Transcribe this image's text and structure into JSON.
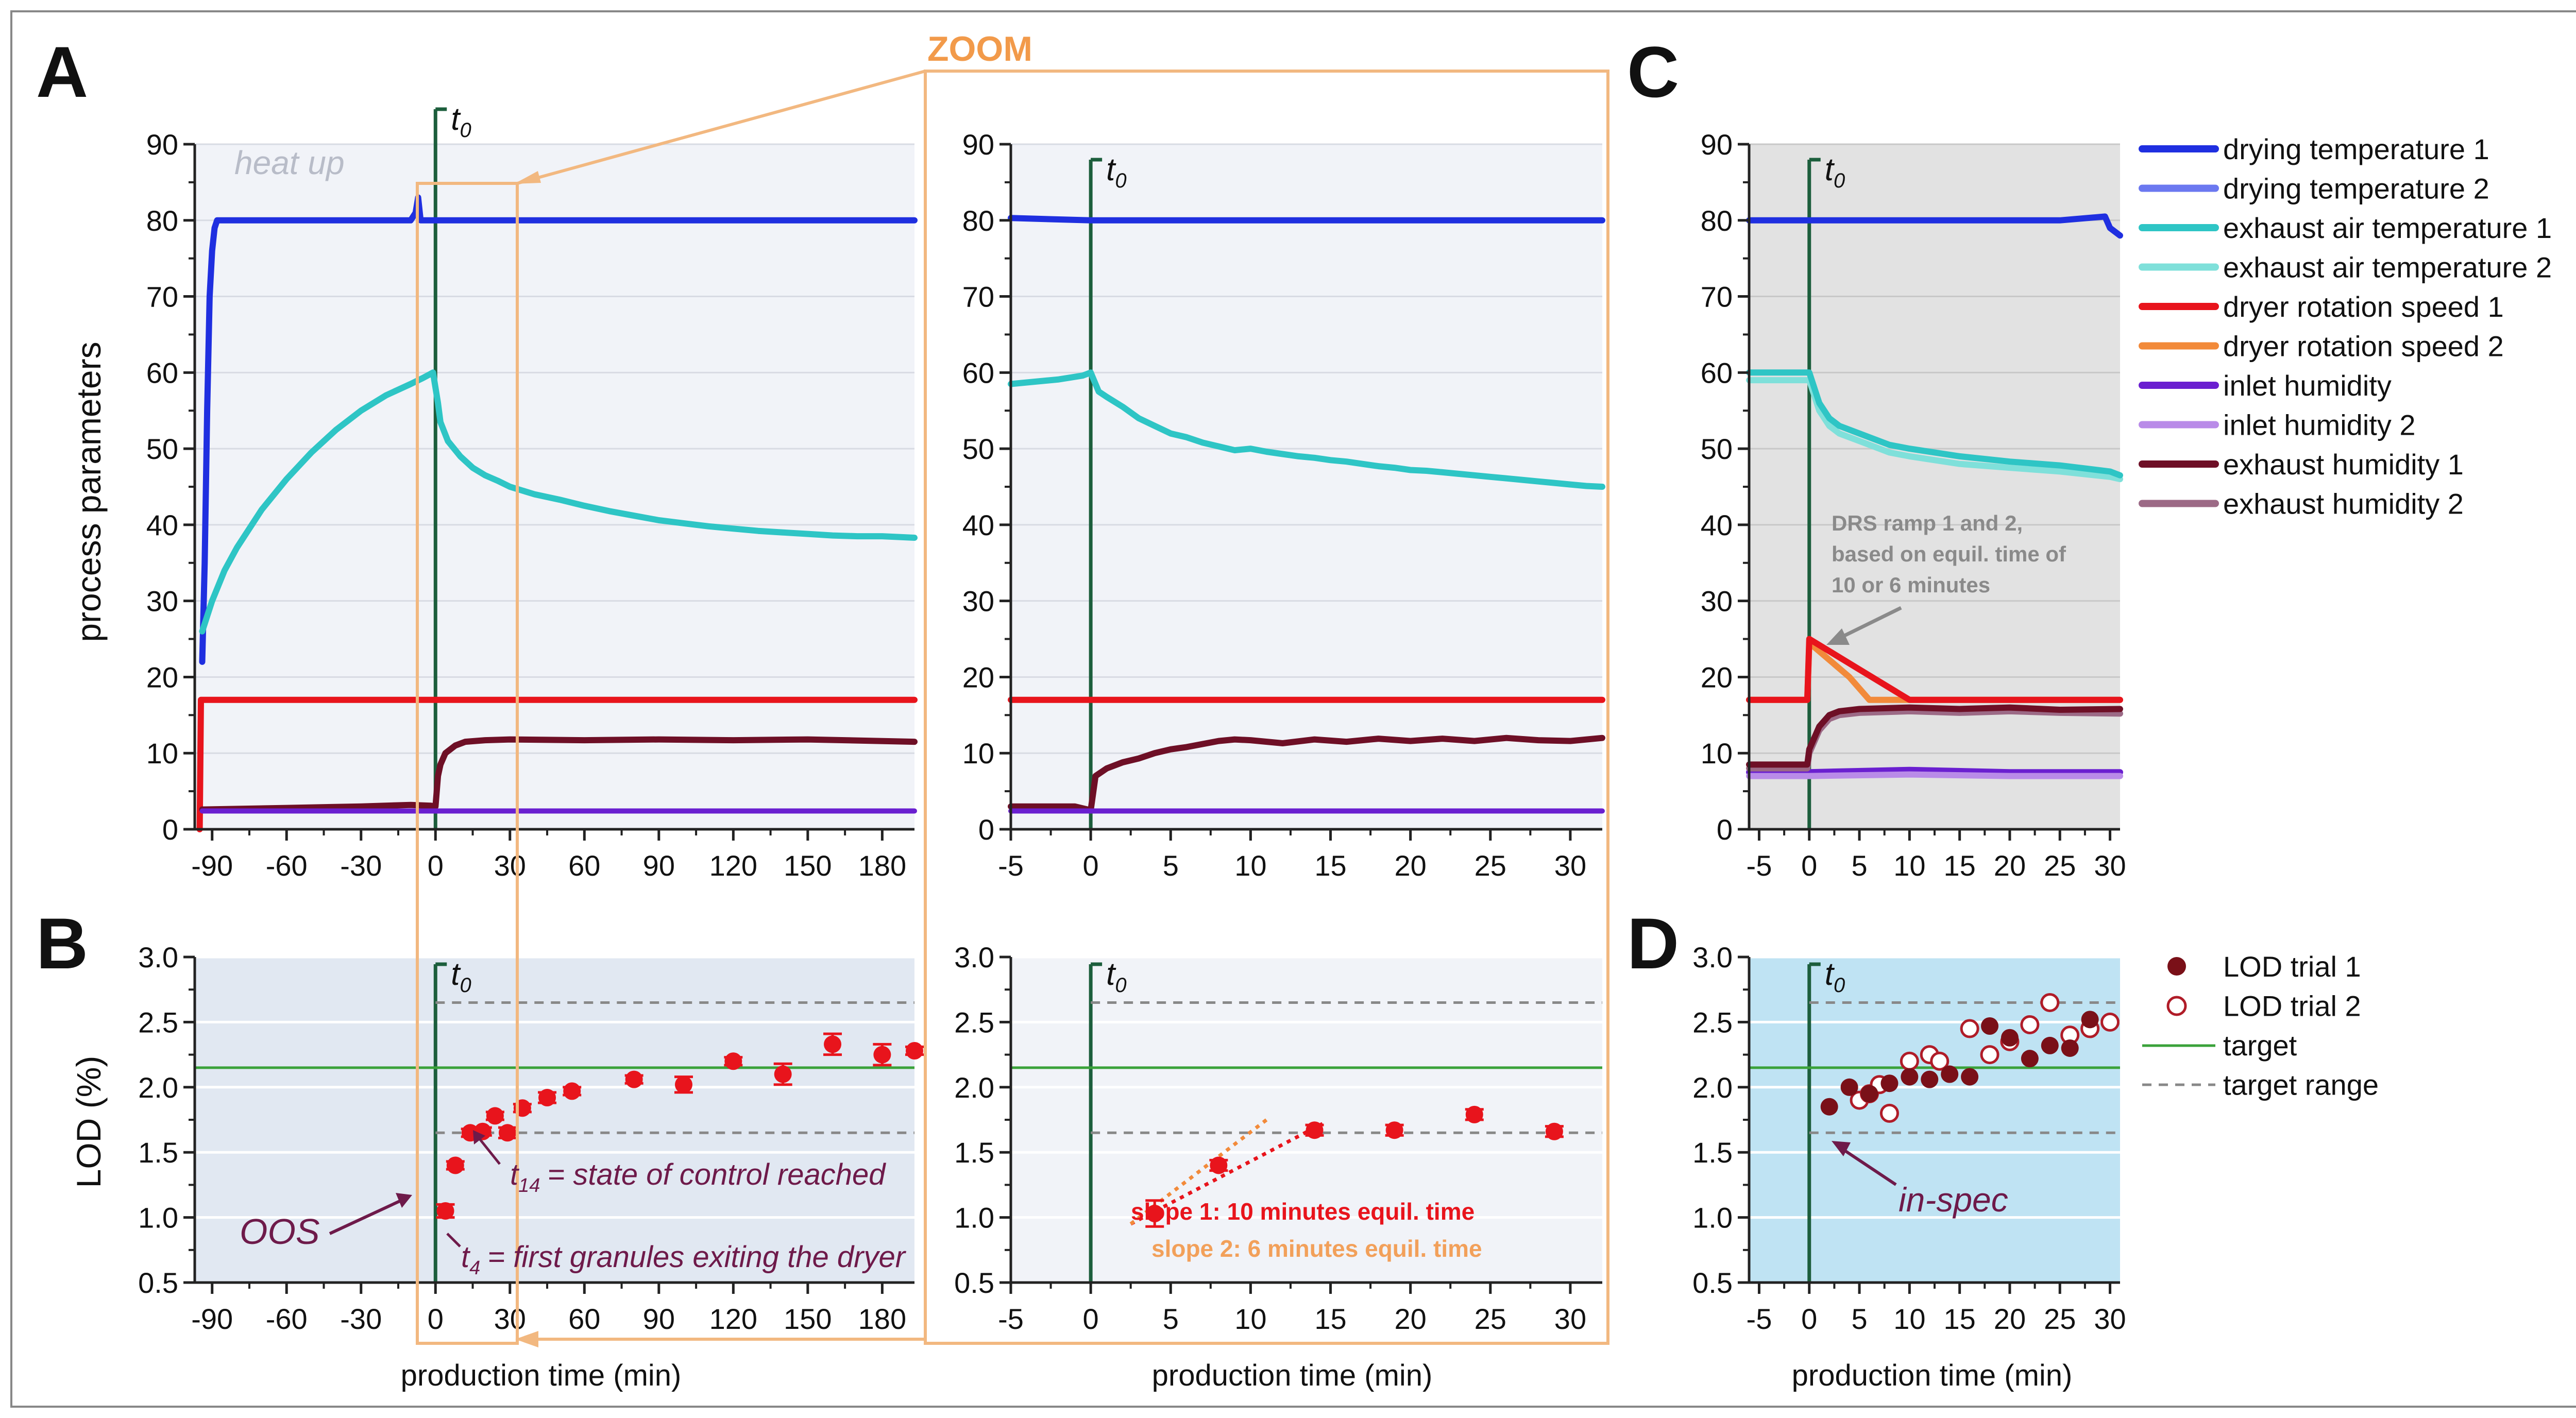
{
  "figure": {
    "panel_letters": {
      "A": "A",
      "B": "B",
      "C": "C",
      "D": "D"
    },
    "zoom_label": "ZOOM",
    "colors": {
      "drying_temp_1": "#1f2fe0",
      "drying_temp_2": "#6b78f0",
      "exhaust_temp_1": "#2ec5c5",
      "exhaust_temp_2": "#7fe0da",
      "rotation_1": "#e8141c",
      "rotation_2": "#f28a3a",
      "inlet_hum_1": "#6a1fd0",
      "inlet_hum_2": "#b98be8",
      "exhaust_hum_1": "#6e0f26",
      "exhaust_hum_2": "#9c6a86",
      "lod": "#e8141c",
      "lod_trial1": "#7a1018",
      "target": "#3aa23a",
      "target_range": "#888888",
      "t0": "#1c5e3c",
      "zoom": "#f2b880",
      "annot": "#6e1a4a",
      "bgA": "#f1f3f8",
      "bgB": "#e1e8f2",
      "bgC": "#e2e2e2",
      "bgD": "#bfe3f3"
    }
  },
  "chart_data": [
    {
      "id": "A",
      "type": "line",
      "ylabel": "process parameters",
      "xlabel": "",
      "xlim": [
        -97,
        193
      ],
      "ylim": [
        0,
        90
      ],
      "xticks": [
        "-90",
        "-60",
        "-30",
        "0",
        "30",
        "60",
        "90",
        "120",
        "150",
        "180"
      ],
      "yticks": [
        "0",
        "10",
        "20",
        "30",
        "40",
        "50",
        "60",
        "70",
        "80",
        "90"
      ],
      "t0_label": "t0",
      "annotations": {
        "heat_up": "heat up"
      },
      "series": [
        {
          "name": "drying temperature 1",
          "x": [
            -94,
            -93,
            -92,
            -91,
            -90,
            -89,
            -88,
            -86,
            -84,
            -80,
            -60,
            -30,
            -10,
            -8,
            -7,
            -6,
            -4,
            0,
            30,
            60,
            90,
            120,
            150,
            193
          ],
          "y": [
            22,
            35,
            55,
            70,
            76,
            79,
            80,
            80,
            80,
            80,
            80,
            80,
            80,
            81,
            83,
            80,
            80,
            80,
            80,
            80,
            80,
            80,
            80,
            80
          ]
        },
        {
          "name": "exhaust air temperature 1",
          "x": [
            -94,
            -90,
            -85,
            -80,
            -70,
            -60,
            -50,
            -40,
            -30,
            -20,
            -10,
            -5,
            -1,
            0,
            1,
            2,
            5,
            10,
            15,
            20,
            25,
            30,
            40,
            50,
            60,
            70,
            80,
            90,
            100,
            110,
            120,
            130,
            140,
            150,
            160,
            170,
            180,
            193
          ],
          "y": [
            26,
            30,
            34,
            37,
            42,
            46,
            49.5,
            52.5,
            55,
            57,
            58.5,
            59.3,
            60,
            58,
            56,
            53.5,
            51,
            49,
            47.5,
            46.5,
            45.8,
            45,
            44,
            43.3,
            42.5,
            41.8,
            41.2,
            40.6,
            40.2,
            39.8,
            39.5,
            39.2,
            39,
            38.8,
            38.6,
            38.5,
            38.5,
            38.3
          ]
        },
        {
          "name": "dryer rotation speed 1",
          "x": [
            -95,
            -94.5,
            -94,
            -90,
            193
          ],
          "y": [
            0,
            17,
            17,
            17,
            17
          ]
        },
        {
          "name": "exhaust humidity 1",
          "x": [
            -94,
            -60,
            -30,
            -10,
            -2,
            0,
            1,
            2,
            4,
            8,
            12,
            20,
            30,
            60,
            90,
            120,
            150,
            193
          ],
          "y": [
            2.6,
            2.8,
            3,
            3.2,
            3.1,
            3,
            7,
            8.5,
            10,
            11,
            11.5,
            11.7,
            11.8,
            11.7,
            11.8,
            11.7,
            11.8,
            11.5
          ]
        },
        {
          "name": "inlet humidity",
          "x": [
            -94,
            193
          ],
          "y": [
            2.4,
            2.4
          ]
        }
      ]
    },
    {
      "id": "A-zoom",
      "type": "line",
      "xlim": [
        -5,
        32
      ],
      "ylim": [
        0,
        90
      ],
      "xticks": [
        "-5",
        "0",
        "5",
        "10",
        "15",
        "20",
        "25",
        "30"
      ],
      "yticks": [
        "0",
        "10",
        "20",
        "30",
        "40",
        "50",
        "60",
        "70",
        "80",
        "90"
      ],
      "t0_label": "t0",
      "series": [
        {
          "name": "drying temperature 1",
          "x": [
            -5,
            0,
            32
          ],
          "y": [
            80.3,
            80,
            80
          ]
        },
        {
          "name": "exhaust air temperature 1",
          "x": [
            -5,
            -2,
            -0.5,
            0,
            0.5,
            1,
            2,
            3,
            4,
            5,
            6,
            7,
            8,
            9,
            10,
            11,
            12,
            13,
            14,
            15,
            16,
            17,
            18,
            19,
            20,
            21,
            22,
            23,
            24,
            25,
            26,
            27,
            28,
            29,
            30,
            31,
            32
          ],
          "y": [
            58.5,
            59.1,
            59.6,
            60,
            57.5,
            56.8,
            55.5,
            54,
            53,
            52,
            51.5,
            50.8,
            50.3,
            49.8,
            50,
            49.6,
            49.3,
            49,
            48.8,
            48.5,
            48.3,
            48,
            47.7,
            47.5,
            47.2,
            47.1,
            46.9,
            46.7,
            46.5,
            46.3,
            46.1,
            45.9,
            45.7,
            45.5,
            45.3,
            45.1,
            45
          ]
        },
        {
          "name": "dryer rotation speed 1",
          "x": [
            -5,
            32
          ],
          "y": [
            17,
            17
          ]
        },
        {
          "name": "exhaust humidity 1",
          "x": [
            -5,
            -1,
            0,
            0.3,
            1,
            2,
            3,
            4,
            5,
            6,
            7,
            8,
            9,
            10,
            12,
            14,
            16,
            18,
            20,
            22,
            24,
            26,
            28,
            30,
            32
          ],
          "y": [
            3,
            3,
            2.5,
            7,
            8,
            8.8,
            9.3,
            10,
            10.5,
            10.8,
            11.2,
            11.6,
            11.8,
            11.7,
            11.3,
            11.8,
            11.5,
            11.9,
            11.6,
            11.9,
            11.6,
            12,
            11.7,
            11.6,
            12
          ]
        },
        {
          "name": "inlet humidity",
          "x": [
            -5,
            32
          ],
          "y": [
            2.4,
            2.4
          ]
        }
      ]
    },
    {
      "id": "C",
      "type": "line",
      "xlim": [
        -6,
        31
      ],
      "ylim": [
        0,
        90
      ],
      "xticks": [
        "-5",
        "0",
        "5",
        "10",
        "15",
        "20",
        "25",
        "30"
      ],
      "yticks": [
        "0",
        "10",
        "20",
        "30",
        "40",
        "50",
        "60",
        "70",
        "80",
        "90"
      ],
      "t0_label": "t0",
      "annotation": {
        "line1": "DRS ramp 1 and 2,",
        "line2": "based on equil. time of",
        "line3": "10 or 6 minutes"
      },
      "legend": [
        "drying temperature 1",
        "drying temperature  2",
        "exhaust air temperature 1",
        "exhaust air temperature  2",
        "dryer rotation speed 1",
        "dryer rotation speed 2",
        "inlet humidity",
        "inlet humidity  2",
        "exhaust humidity 1",
        "exhaust humidity  2"
      ],
      "series": [
        {
          "name": "drying temperature 1",
          "x": [
            -6,
            0,
            5,
            10,
            15,
            20,
            25,
            29.5,
            30,
            31
          ],
          "y": [
            80,
            80,
            80,
            80,
            80,
            80,
            80,
            80.5,
            79,
            78
          ]
        },
        {
          "name": "exhaust air temperature 2",
          "x": [
            -6,
            -2,
            0,
            1,
            2,
            3,
            5,
            8,
            10,
            15,
            20,
            25,
            30,
            31
          ],
          "y": [
            59,
            59,
            59,
            55,
            53,
            52,
            51,
            49.5,
            49,
            48,
            47.5,
            47,
            46.3,
            46
          ]
        },
        {
          "name": "exhaust air temperature 1",
          "x": [
            -6,
            -2,
            0,
            1,
            2,
            3,
            5,
            8,
            10,
            15,
            20,
            25,
            30,
            31
          ],
          "y": [
            60,
            60,
            60,
            56,
            54,
            53,
            52,
            50.5,
            50,
            49,
            48.3,
            47.8,
            47,
            46.5
          ]
        },
        {
          "name": "dryer rotation speed 2",
          "x": [
            -6,
            -0.2,
            0,
            4,
            6,
            31
          ],
          "y": [
            17,
            17,
            24.5,
            20,
            17,
            17
          ]
        },
        {
          "name": "dryer rotation speed 1",
          "x": [
            -6,
            -0.2,
            0,
            5,
            10,
            31
          ],
          "y": [
            17,
            17,
            25,
            21,
            17,
            17
          ]
        },
        {
          "name": "inlet humidity",
          "x": [
            -6,
            0,
            10,
            20,
            31
          ],
          "y": [
            7.5,
            7.5,
            7.8,
            7.5,
            7.5
          ]
        },
        {
          "name": "inlet humidity 2",
          "x": [
            -6,
            0,
            10,
            20,
            31
          ],
          "y": [
            7,
            7,
            7.2,
            7,
            7
          ]
        },
        {
          "name": "exhaust humidity 2",
          "x": [
            -6,
            -0.2,
            0,
            1,
            2,
            3,
            5,
            10,
            15,
            20,
            25,
            31
          ],
          "y": [
            8,
            8,
            10,
            13,
            14.5,
            15,
            15.3,
            15.5,
            15.3,
            15.5,
            15.3,
            15.2
          ]
        },
        {
          "name": "exhaust humidity 1",
          "x": [
            -6,
            -0.2,
            0,
            1,
            2,
            3,
            5,
            10,
            15,
            20,
            25,
            31
          ],
          "y": [
            8.5,
            8.5,
            10.5,
            13.5,
            15,
            15.5,
            15.8,
            16,
            15.8,
            16,
            15.7,
            15.8
          ]
        }
      ]
    },
    {
      "id": "B",
      "type": "scatter",
      "ylabel": "LOD (%)",
      "xlabel": "production time (min)",
      "xlim": [
        -97,
        193
      ],
      "ylim": [
        0.5,
        3.0
      ],
      "xticks": [
        "-90",
        "-60",
        "-30",
        "0",
        "30",
        "60",
        "90",
        "120",
        "150",
        "180"
      ],
      "yticks": [
        "0.5",
        "1.0",
        "1.5",
        "2.0",
        "2.5",
        "3.0"
      ],
      "t0_label": "t0",
      "target": 2.15,
      "target_range": [
        1.65,
        2.65
      ],
      "points": {
        "x": [
          4,
          8,
          14,
          19,
          24,
          29,
          35,
          45,
          55,
          80,
          100,
          120,
          140,
          160,
          180,
          193
        ],
        "y": [
          1.05,
          1.4,
          1.65,
          1.66,
          1.78,
          1.65,
          1.84,
          1.92,
          1.97,
          2.06,
          2.02,
          2.2,
          2.1,
          2.33,
          2.25,
          2.28
        ],
        "err": [
          0.05,
          0.03,
          0.03,
          0.03,
          0.03,
          0.04,
          0.03,
          0.04,
          0.03,
          0.03,
          0.06,
          0.03,
          0.08,
          0.08,
          0.08,
          0.03
        ]
      },
      "annotations": {
        "oos": "OOS",
        "t14": "= state of control reached",
        "t14_sub": "14",
        "t4": "= first granules exiting the dryer",
        "t4_sub": "4",
        "t": "t"
      }
    },
    {
      "id": "B-zoom",
      "type": "scatter",
      "xlabel": "production time (min)",
      "xlim": [
        -5,
        32
      ],
      "ylim": [
        0.5,
        3.0
      ],
      "xticks": [
        "-5",
        "0",
        "5",
        "10",
        "15",
        "20",
        "25",
        "30"
      ],
      "yticks": [
        "0.5",
        "1.0",
        "1.5",
        "2.0",
        "2.5",
        "3.0"
      ],
      "t0_label": "t0",
      "target": 2.15,
      "target_range": [
        1.65,
        2.65
      ],
      "points": {
        "x": [
          4,
          8,
          14,
          19,
          24,
          29
        ],
        "y": [
          1.03,
          1.4,
          1.67,
          1.67,
          1.79,
          1.66
        ],
        "err": [
          0.1,
          0.04,
          0.04,
          0.04,
          0.04,
          0.04
        ]
      },
      "slope1": {
        "x": [
          2.5,
          14.5
        ],
        "y": [
          0.95,
          1.72
        ]
      },
      "slope2": {
        "x": [
          2.5,
          11
        ],
        "y": [
          0.95,
          1.75
        ]
      },
      "slope1_label": "slope 1: 10 minutes equil. time",
      "slope2_label": "slope 2: 6 minutes equil. time"
    },
    {
      "id": "D",
      "type": "scatter",
      "xlabel": "production time (min)",
      "xlim": [
        -6,
        31
      ],
      "ylim": [
        0.5,
        3.0
      ],
      "xticks": [
        "-5",
        "0",
        "5",
        "10",
        "15",
        "20",
        "25",
        "30"
      ],
      "yticks": [
        "0.5",
        "1.0",
        "1.5",
        "2.0",
        "2.5",
        "3.0"
      ],
      "t0_label": "t0",
      "target": 2.15,
      "target_range": [
        1.65,
        2.65
      ],
      "trial1": {
        "x": [
          2,
          4,
          6,
          8,
          10,
          12,
          14,
          16,
          18,
          20,
          22,
          24,
          26,
          28
        ],
        "y": [
          1.85,
          2.0,
          1.95,
          2.03,
          2.08,
          2.06,
          2.1,
          2.08,
          2.47,
          2.38,
          2.22,
          2.32,
          2.3,
          2.52
        ]
      },
      "trial2": {
        "x": [
          5,
          6,
          7,
          8,
          10,
          12,
          13,
          16,
          18,
          20,
          22,
          24,
          26,
          28,
          30
        ],
        "y": [
          1.9,
          1.95,
          2.02,
          1.8,
          2.2,
          2.25,
          2.2,
          2.45,
          2.25,
          2.35,
          2.48,
          2.65,
          2.4,
          2.45,
          2.5
        ]
      },
      "annotation": "in-spec",
      "legend": [
        "LOD trial 1",
        "LOD trial 2",
        "target",
        "target range"
      ]
    }
  ]
}
